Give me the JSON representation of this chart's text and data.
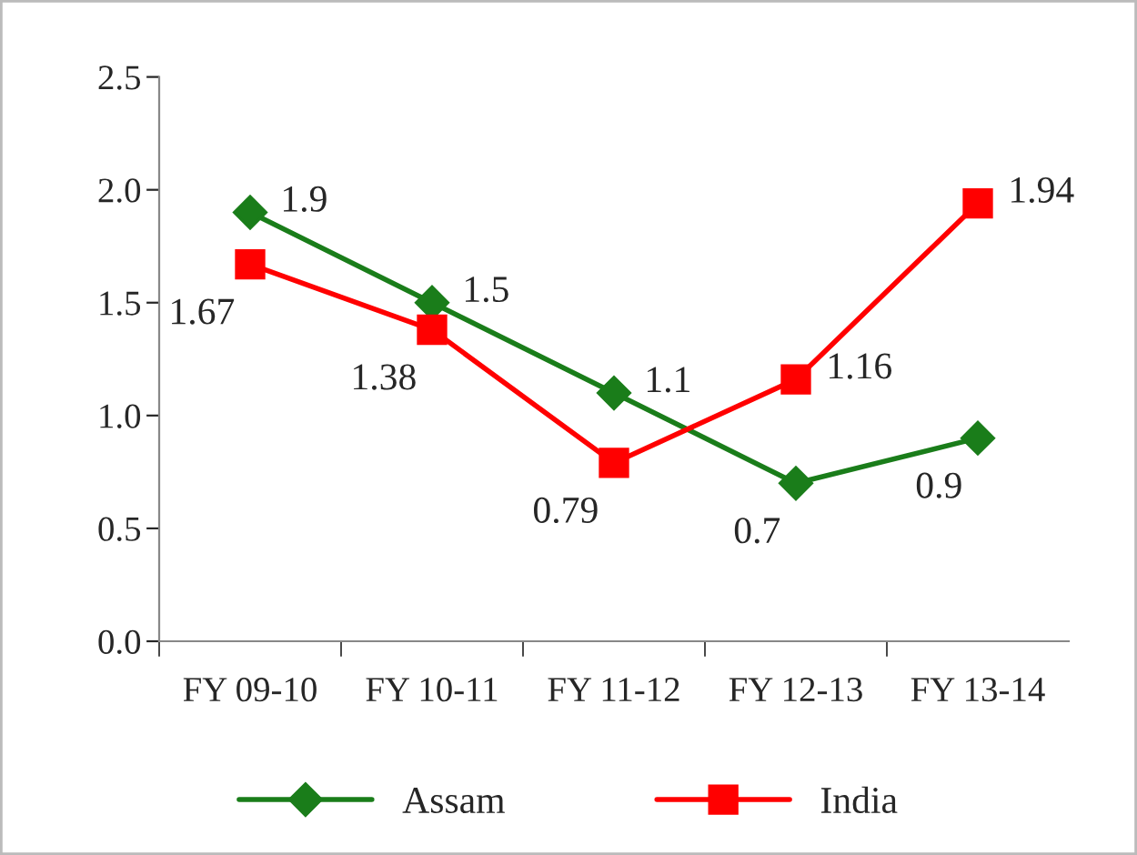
{
  "chart_data": {
    "type": "line",
    "categories": [
      "FY 09-10",
      "FY 10-11",
      "FY 11-12",
      "FY 12-13",
      "FY 13-14"
    ],
    "series": [
      {
        "name": "Assam",
        "color": "#1a7d1a",
        "values": [
          1.9,
          1.5,
          1.1,
          0.7,
          0.9
        ],
        "marker": "diamond"
      },
      {
        "name": "India",
        "color": "#ff0000",
        "values": [
          1.67,
          1.38,
          0.79,
          1.16,
          1.94
        ],
        "marker": "square"
      }
    ],
    "ylim": [
      0,
      2.5
    ],
    "yticks": [
      {
        "value": 0,
        "label": "0.0"
      },
      {
        "value": 0.5,
        "label": "0.5"
      },
      {
        "value": 1.0,
        "label": "1.0"
      },
      {
        "value": 1.5,
        "label": "1.5"
      },
      {
        "value": 2.0,
        "label": "2.0"
      },
      {
        "value": 2.5,
        "label": "2.5"
      }
    ],
    "data_labels": true,
    "legend": "bottom",
    "grid": false,
    "line_style": "solid"
  }
}
